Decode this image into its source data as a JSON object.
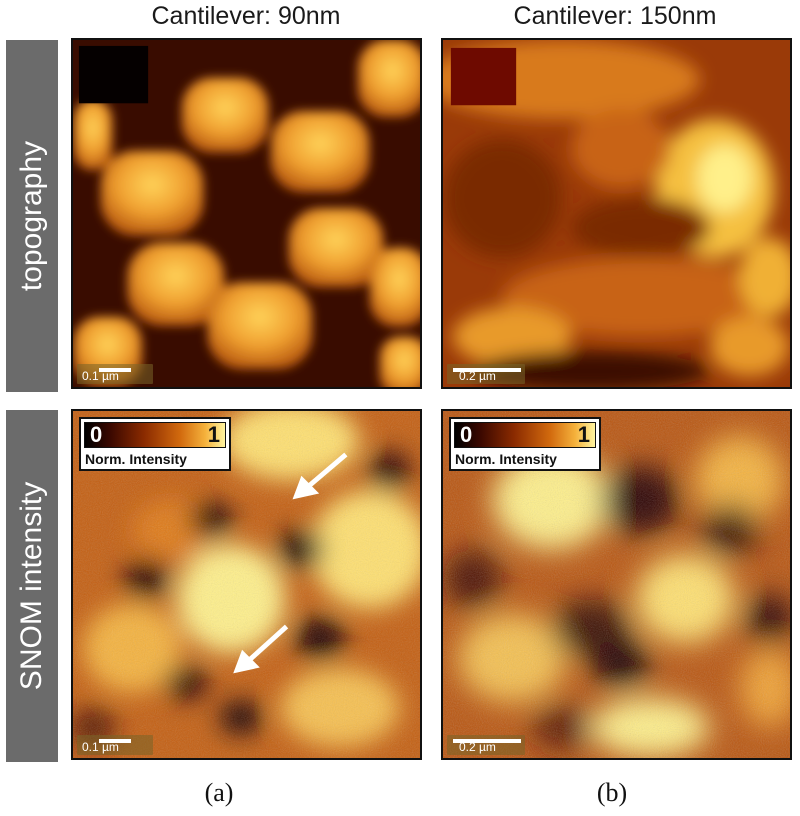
{
  "columns": {
    "a": {
      "header": "Cantilever: 90nm",
      "sublabel": "(a)"
    },
    "b": {
      "header": "Cantilever: 150nm",
      "sublabel": "(b)"
    }
  },
  "rows": {
    "topography": {
      "label": "topography"
    },
    "snom": {
      "label": "SNOM intensity"
    }
  },
  "panels": {
    "topo_a": {
      "scalebar": "0.1 µm"
    },
    "topo_b": {
      "scalebar": "0.2 µm"
    },
    "snom_a": {
      "scalebar": "0.1 µm",
      "colorbar": {
        "min": "0",
        "max": "1",
        "title": "Norm. Intensity"
      }
    },
    "snom_b": {
      "scalebar": "0.2 µm",
      "colorbar": {
        "min": "0",
        "max": "1",
        "title": "Norm. Intensity"
      }
    }
  },
  "colormap": [
    "#000000",
    "#3a0800",
    "#8a2a00",
    "#d26a0e",
    "#f5b23c",
    "#fff4a0"
  ]
}
